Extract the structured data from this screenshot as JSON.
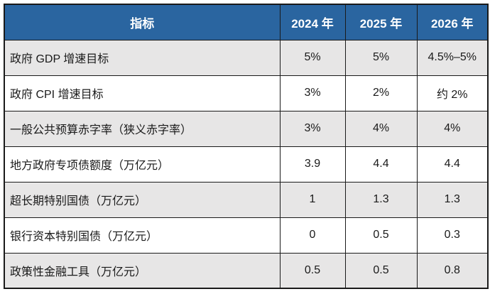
{
  "colors": {
    "header_bg": "#2a65a0",
    "header_text": "#ffffff",
    "row_alt_bg": "#e7e6e6",
    "row_bg": "#ffffff",
    "border": "#1a1a1a",
    "cell_text": "#1a1a1a"
  },
  "table": {
    "header": {
      "indicator": "指标",
      "years": [
        "2024 年",
        "2025 年",
        "2026 年"
      ]
    },
    "rows": [
      {
        "label": "政府 GDP 增速目标",
        "values": [
          "5%",
          "5%",
          "4.5%–5%"
        ]
      },
      {
        "label": "政府 CPI 增速目标",
        "values": [
          "3%",
          "2%",
          "约 2%"
        ]
      },
      {
        "label": "一般公共预算赤字率（狭义赤字率）",
        "values": [
          "3%",
          "4%",
          "4%"
        ]
      },
      {
        "label": "地方政府专项债额度（万亿元）",
        "values": [
          "3.9",
          "4.4",
          "4.4"
        ]
      },
      {
        "label": "超长期特别国债（万亿元）",
        "values": [
          "1",
          "1.3",
          "1.3"
        ]
      },
      {
        "label": "银行资本特别国债（万亿元）",
        "values": [
          "0",
          "0.5",
          "0.3"
        ]
      },
      {
        "label": "政策性金融工具（万亿元）",
        "values": [
          "0.5",
          "0.5",
          "0.8"
        ]
      }
    ]
  },
  "chart_data": {
    "type": "table",
    "columns": [
      "指标",
      "2024 年",
      "2025 年",
      "2026 年"
    ],
    "rows": [
      [
        "政府 GDP 增速目标",
        "5%",
        "5%",
        "4.5%–5%"
      ],
      [
        "政府 CPI 增速目标",
        "3%",
        "2%",
        "约 2%"
      ],
      [
        "一般公共预算赤字率（狭义赤字率）",
        "3%",
        "4%",
        "4%"
      ],
      [
        "地方政府专项债额度（万亿元）",
        "3.9",
        "4.4",
        "4.4"
      ],
      [
        "超长期特别国债（万亿元）",
        "1",
        "1.3",
        "1.3"
      ],
      [
        "银行资本特别国债（万亿元）",
        "0",
        "0.5",
        "0.3"
      ],
      [
        "政策性金融工具（万亿元）",
        "0.5",
        "0.5",
        "0.8"
      ]
    ]
  }
}
